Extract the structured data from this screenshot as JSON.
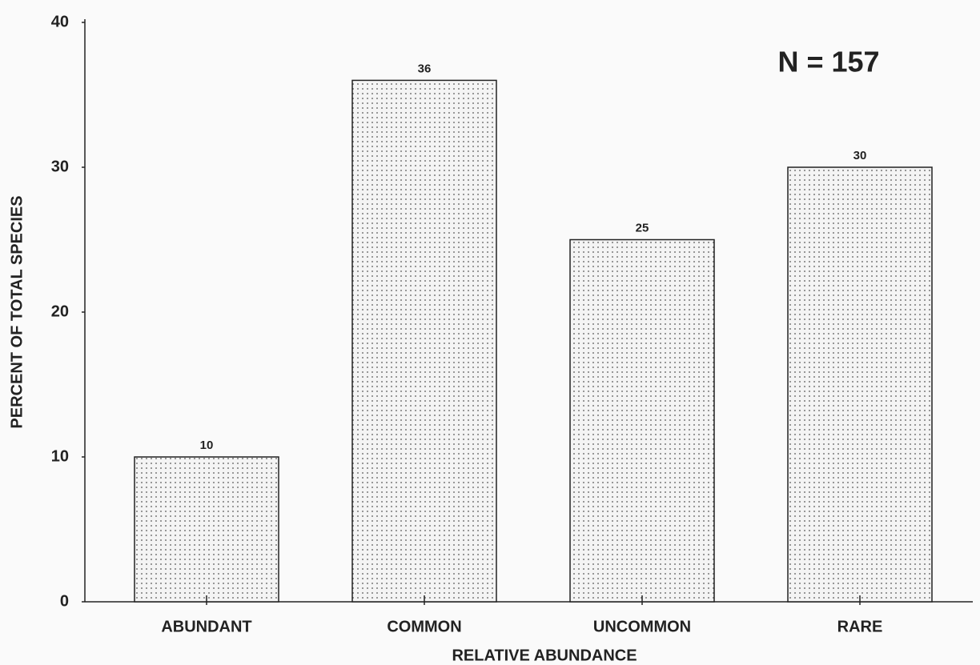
{
  "chart_data": {
    "type": "bar",
    "categories": [
      "ABUNDANT",
      "COMMON",
      "UNCOMMON",
      "RARE"
    ],
    "values": [
      10,
      36,
      25,
      30
    ],
    "color": "#555555",
    "xlabel": "RELATIVE ABUNDANCE",
    "ylabel": "PERCENT OF TOTAL SPECIES",
    "annotation": "N = 157",
    "ylim": [
      0,
      40
    ],
    "yticks": [
      0,
      10,
      20,
      30,
      40
    ],
    "grid": false
  }
}
